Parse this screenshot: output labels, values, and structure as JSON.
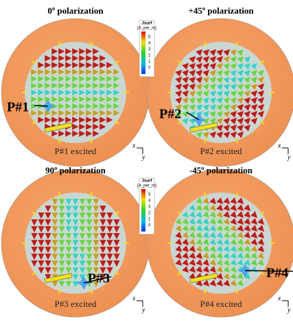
{
  "panels": [
    {
      "title": "0º polarization",
      "port_label": "P#1",
      "excited": "P#1 excited",
      "axis_x": "x",
      "axis_y": "y"
    },
    {
      "title": "+45º polarization",
      "port_label": "P#2",
      "excited": "P#2 excited",
      "axis_x": "x",
      "axis_y": "y"
    },
    {
      "title": "90º polarization",
      "port_label": "P#3",
      "excited": "P#3 excited",
      "axis_x": "x",
      "axis_y": "y"
    },
    {
      "title": "-45º polarization",
      "port_label": "P#4",
      "excited": "P#4 excited",
      "axis_x": "x",
      "axis_y": "y"
    }
  ],
  "colorbars": [
    {
      "title": "Jsurf",
      "unit": "[A_per_m]",
      "ticks": [
        5,
        4,
        3,
        2,
        1,
        0
      ]
    },
    {
      "title": "Jsurf",
      "unit": "[A_per_m]",
      "ticks": [
        5,
        4,
        3,
        2,
        1,
        0
      ]
    }
  ]
}
